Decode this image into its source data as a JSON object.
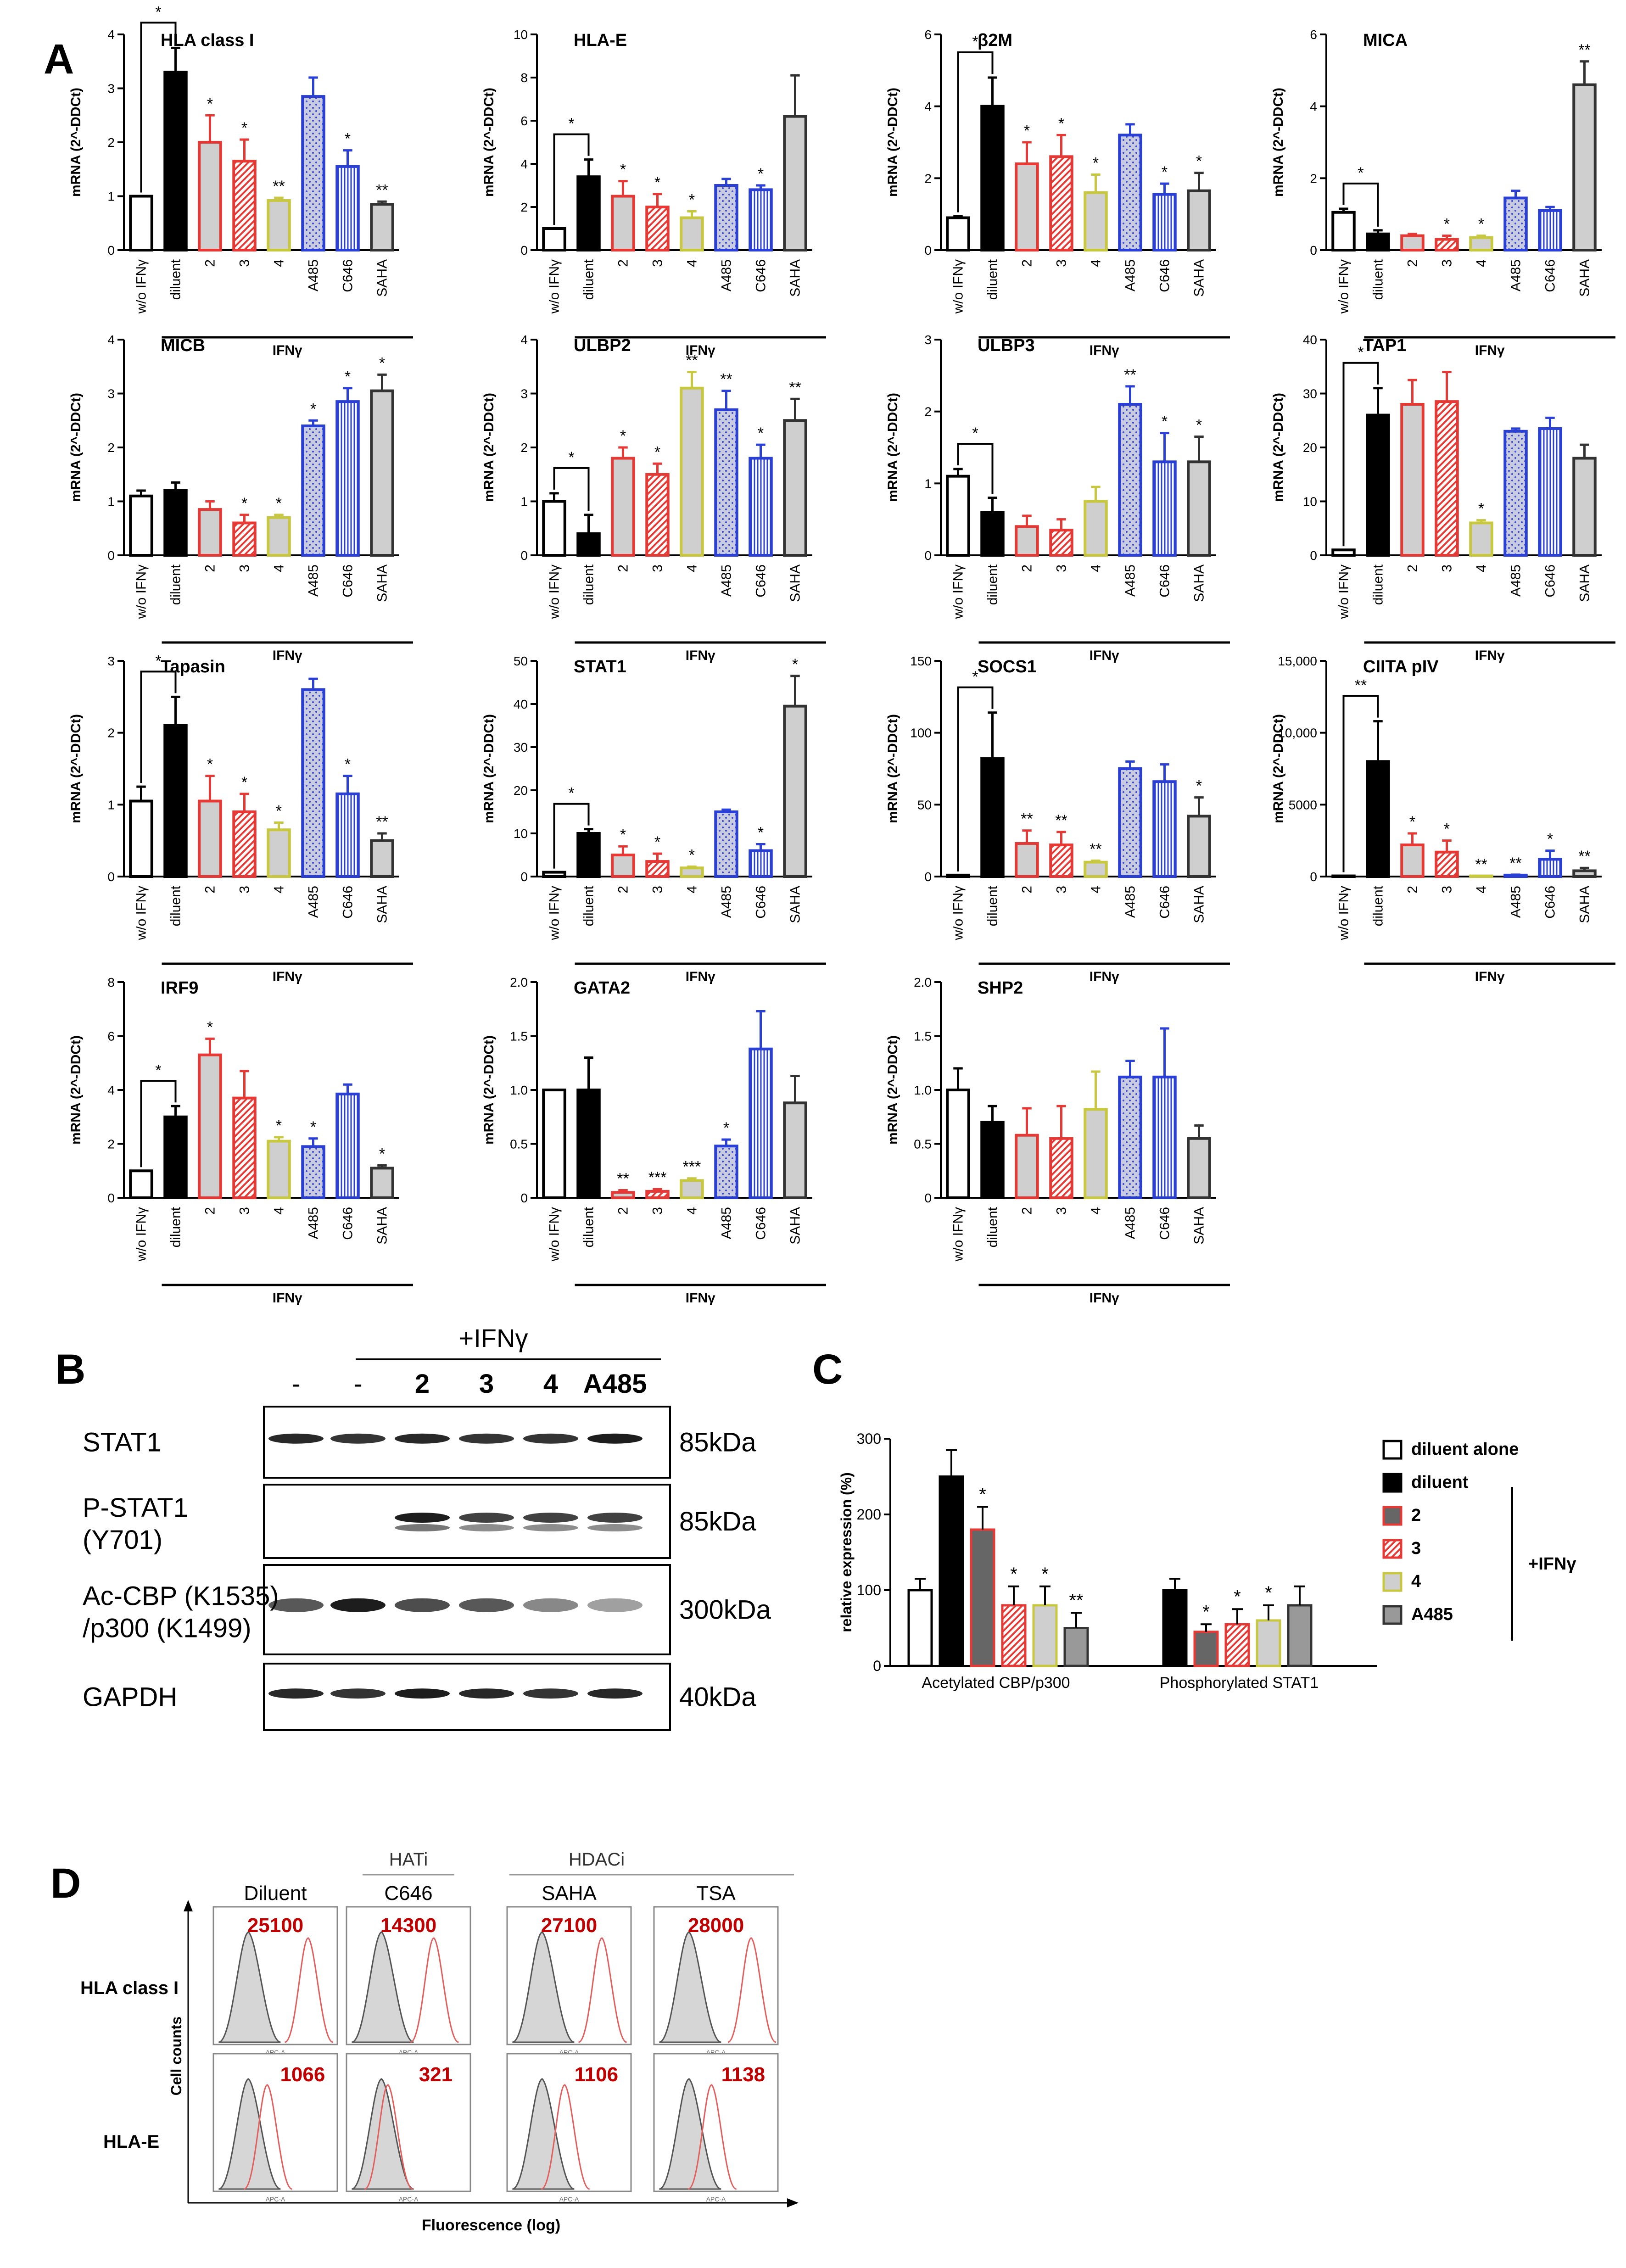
{
  "panel_labels": {
    "a": "A",
    "b": "B",
    "c": "C",
    "d": "D"
  },
  "shared": {
    "ylabel": "mRNA (2^-DDCt)",
    "categories": [
      "w/o IFNγ",
      "diluent",
      "2",
      "3",
      "4",
      "A485",
      "C646",
      "SAHA"
    ],
    "group_label": "IFNγ",
    "colors": {
      "w/o IFNγ": "#ffffff",
      "diluent": "#000000",
      "2": "#e53935",
      "3": "#e53935",
      "4": "#c8c840",
      "A485": "#2a3fd4",
      "C646": "#2a3fd4",
      "SAHA": "#444444"
    }
  },
  "chart_data": [
    {
      "type": "bar",
      "title": "HLA class I",
      "categories": [
        "w/o IFNγ",
        "diluent",
        "2",
        "3",
        "4",
        "A485",
        "C646",
        "SAHA"
      ],
      "values": [
        1.0,
        3.3,
        2.0,
        1.65,
        0.92,
        2.85,
        1.55,
        0.85
      ],
      "errors": [
        0,
        0.45,
        0.5,
        0.4,
        0.05,
        0.35,
        0.3,
        0.05
      ],
      "sig": [
        "",
        "",
        "*",
        "*",
        "**",
        "",
        "*",
        "**"
      ],
      "bracket": "*",
      "ylim": [
        0,
        4
      ],
      "yticks": [
        "0",
        "1",
        "2",
        "3",
        "4"
      ],
      "ylabel": "mRNA (2^-DDCt)",
      "xlabel": "IFNγ"
    },
    {
      "type": "bar",
      "title": "HLA-E",
      "categories": [
        "w/o IFNγ",
        "diluent",
        "2",
        "3",
        "4",
        "A485",
        "C646",
        "SAHA"
      ],
      "values": [
        1.0,
        3.4,
        2.5,
        2.0,
        1.5,
        3.0,
        2.8,
        6.2
      ],
      "errors": [
        0,
        0.8,
        0.7,
        0.6,
        0.3,
        0.3,
        0.2,
        1.9
      ],
      "sig": [
        "",
        "",
        "*",
        "*",
        "*",
        "",
        "*",
        ""
      ],
      "bracket": "*",
      "ylim": [
        0,
        10
      ],
      "yticks": [
        "0",
        "2",
        "4",
        "6",
        "8",
        "10"
      ],
      "ylabel": "mRNA (2^-DDCt)",
      "xlabel": "IFNγ"
    },
    {
      "type": "bar",
      "title": "β2M",
      "categories": [
        "w/o IFNγ",
        "diluent",
        "2",
        "3",
        "4",
        "A485",
        "C646",
        "SAHA"
      ],
      "values": [
        0.9,
        4.0,
        2.4,
        2.6,
        1.6,
        3.2,
        1.55,
        1.65
      ],
      "errors": [
        0.05,
        0.8,
        0.6,
        0.6,
        0.5,
        0.3,
        0.3,
        0.5
      ],
      "sig": [
        "",
        "",
        "*",
        "*",
        "*",
        "",
        "*",
        "*"
      ],
      "bracket": "*",
      "ylim": [
        0,
        6
      ],
      "yticks": [
        "0",
        "2",
        "4",
        "6"
      ],
      "ylabel": "mRNA (2^-DDCt)",
      "xlabel": "IFNγ"
    },
    {
      "type": "bar",
      "title": "MICA",
      "categories": [
        "w/o IFNγ",
        "diluent",
        "2",
        "3",
        "4",
        "A485",
        "C646",
        "SAHA"
      ],
      "values": [
        1.05,
        0.45,
        0.4,
        0.3,
        0.35,
        1.45,
        1.1,
        4.6
      ],
      "errors": [
        0.1,
        0.1,
        0.05,
        0.1,
        0.05,
        0.2,
        0.1,
        0.65
      ],
      "sig": [
        "",
        "",
        "",
        "*",
        "*",
        "",
        "",
        "**"
      ],
      "bracket": "*",
      "ylim": [
        0,
        6
      ],
      "yticks": [
        "0",
        "2",
        "4",
        "6"
      ],
      "ylabel": "mRNA (2^-DDCt)",
      "xlabel": "IFNγ"
    },
    {
      "type": "bar",
      "title": "MICB",
      "categories": [
        "w/o IFNγ",
        "diluent",
        "2",
        "3",
        "4",
        "A485",
        "C646",
        "SAHA"
      ],
      "values": [
        1.1,
        1.2,
        0.85,
        0.6,
        0.7,
        2.4,
        2.85,
        3.05
      ],
      "errors": [
        0.1,
        0.15,
        0.15,
        0.15,
        0.05,
        0.1,
        0.25,
        0.3
      ],
      "sig": [
        "",
        "",
        "",
        "*",
        "*",
        "*",
        "*",
        "*"
      ],
      "bracket": "",
      "ylim": [
        0,
        4
      ],
      "yticks": [
        "0",
        "1",
        "2",
        "3",
        "4"
      ],
      "ylabel": "mRNA (2^-DDCt)",
      "xlabel": "IFNγ"
    },
    {
      "type": "bar",
      "title": "ULBP2",
      "categories": [
        "w/o IFNγ",
        "diluent",
        "2",
        "3",
        "4",
        "A485",
        "C646",
        "SAHA"
      ],
      "values": [
        1.0,
        0.4,
        1.8,
        1.5,
        3.1,
        2.7,
        1.8,
        2.5
      ],
      "errors": [
        0.15,
        0.35,
        0.2,
        0.2,
        0.3,
        0.35,
        0.25,
        0.4
      ],
      "sig": [
        "",
        "",
        "*",
        "*",
        "**",
        "**",
        "*",
        "**"
      ],
      "bracket": "*",
      "ylim": [
        0,
        4
      ],
      "yticks": [
        "0",
        "1",
        "2",
        "3",
        "4"
      ],
      "ylabel": "mRNA (2^-DDCt)",
      "xlabel": "IFNγ"
    },
    {
      "type": "bar",
      "title": "ULBP3",
      "categories": [
        "w/o IFNγ",
        "diluent",
        "2",
        "3",
        "4",
        "A485",
        "C646",
        "SAHA"
      ],
      "values": [
        1.1,
        0.6,
        0.4,
        0.35,
        0.75,
        2.1,
        1.3,
        1.3
      ],
      "errors": [
        0.1,
        0.2,
        0.15,
        0.15,
        0.2,
        0.25,
        0.4,
        0.35
      ],
      "sig": [
        "",
        "",
        "",
        "",
        "",
        "**",
        "*",
        "*"
      ],
      "bracket": "*",
      "ylim": [
        0,
        3
      ],
      "yticks": [
        "0",
        "1",
        "2",
        "3"
      ],
      "ylabel": "mRNA (2^-DDCt)",
      "xlabel": "IFNγ"
    },
    {
      "type": "bar",
      "title": "TAP1",
      "categories": [
        "w/o IFNγ",
        "diluent",
        "2",
        "3",
        "4",
        "A485",
        "C646",
        "SAHA"
      ],
      "values": [
        1.0,
        26,
        28,
        28.5,
        6,
        23,
        23.5,
        18
      ],
      "errors": [
        0,
        5,
        4.5,
        5.5,
        0.5,
        0.5,
        2,
        2.5
      ],
      "sig": [
        "",
        "",
        "",
        "",
        "*",
        "",
        "",
        ""
      ],
      "bracket": "*",
      "ylim": [
        0,
        40
      ],
      "yticks": [
        "0",
        "10",
        "20",
        "30",
        "40"
      ],
      "ylabel": "mRNA (2^-DDCt)",
      "xlabel": "IFNγ"
    },
    {
      "type": "bar",
      "title": "Tapasin",
      "categories": [
        "w/o IFNγ",
        "diluent",
        "2",
        "3",
        "4",
        "A485",
        "C646",
        "SAHA"
      ],
      "values": [
        1.05,
        2.1,
        1.05,
        0.9,
        0.65,
        2.6,
        1.15,
        0.5
      ],
      "errors": [
        0.2,
        0.4,
        0.35,
        0.25,
        0.1,
        0.15,
        0.25,
        0.1
      ],
      "sig": [
        "",
        "",
        "*",
        "*",
        "*",
        "",
        "*",
        "**"
      ],
      "bracket": "*",
      "ylim": [
        0,
        3
      ],
      "yticks": [
        "0",
        "1",
        "2",
        "3"
      ],
      "ylabel": "mRNA (2^-DDCt)",
      "xlabel": "IFNγ"
    },
    {
      "type": "bar",
      "title": "STAT1",
      "categories": [
        "w/o IFNγ",
        "diluent",
        "2",
        "3",
        "4",
        "A485",
        "C646",
        "SAHA"
      ],
      "values": [
        1.0,
        10,
        5,
        3.5,
        2,
        15,
        6,
        39.5
      ],
      "errors": [
        0,
        1,
        2,
        1.8,
        0.3,
        0.5,
        1.5,
        7
      ],
      "sig": [
        "",
        "",
        "*",
        "*",
        "*",
        "",
        "*",
        "*"
      ],
      "bracket": "*",
      "ylim": [
        0,
        50
      ],
      "yticks": [
        "0",
        "10",
        "20",
        "30",
        "40",
        "50"
      ],
      "ylabel": "mRNA (2^-DDCt)",
      "xlabel": "IFNγ"
    },
    {
      "type": "bar",
      "title": "SOCS1",
      "categories": [
        "w/o IFNγ",
        "diluent",
        "2",
        "3",
        "4",
        "A485",
        "C646",
        "SAHA"
      ],
      "values": [
        1.0,
        82,
        23,
        22,
        10,
        75,
        66,
        42
      ],
      "errors": [
        0,
        32,
        9,
        9,
        1,
        5,
        12,
        13
      ],
      "sig": [
        "",
        "",
        "**",
        "**",
        "**",
        "",
        "",
        "*"
      ],
      "bracket": "*",
      "ylim": [
        0,
        150
      ],
      "yticks": [
        "0",
        "50",
        "100",
        "150"
      ],
      "ylabel": "mRNA (2^-DDCt)",
      "xlabel": "IFNγ"
    },
    {
      "type": "bar",
      "title": "CIITA pIV",
      "categories": [
        "w/o IFNγ",
        "diluent",
        "2",
        "3",
        "4",
        "A485",
        "C646",
        "SAHA"
      ],
      "values": [
        1.0,
        8000,
        2200,
        1700,
        20,
        100,
        1200,
        400
      ],
      "errors": [
        0,
        2800,
        800,
        800,
        5,
        30,
        600,
        200
      ],
      "sig": [
        "",
        "",
        "*",
        "*",
        "**",
        "**",
        "*",
        "**"
      ],
      "bracket": "**",
      "ylim": [
        0,
        15000
      ],
      "yticks": [
        "0",
        "5000",
        "10,000",
        "15,000"
      ],
      "ylabel": "mRNA (2^-DDCt)",
      "xlabel": "IFNγ"
    },
    {
      "type": "bar",
      "title": "IRF9",
      "categories": [
        "w/o IFNγ",
        "diluent",
        "2",
        "3",
        "4",
        "A485",
        "C646",
        "SAHA"
      ],
      "values": [
        1.0,
        3.0,
        5.3,
        3.7,
        2.1,
        1.9,
        3.85,
        1.1
      ],
      "errors": [
        0,
        0.4,
        0.6,
        1.0,
        0.15,
        0.3,
        0.35,
        0.1
      ],
      "sig": [
        "",
        "",
        "*",
        "",
        "*",
        "*",
        "",
        "*"
      ],
      "bracket": "*",
      "ylim": [
        0,
        8
      ],
      "yticks": [
        "0",
        "2",
        "4",
        "6",
        "8"
      ],
      "ylabel": "mRNA (2^-DDCt)",
      "xlabel": "IFNγ"
    },
    {
      "type": "bar",
      "title": "GATA2",
      "categories": [
        "w/o IFNγ",
        "diluent",
        "2",
        "3",
        "4",
        "A485",
        "C646",
        "SAHA"
      ],
      "values": [
        1.0,
        1.0,
        0.05,
        0.06,
        0.16,
        0.48,
        1.38,
        0.88
      ],
      "errors": [
        0,
        0.3,
        0.02,
        0.02,
        0.02,
        0.06,
        0.35,
        0.25
      ],
      "sig": [
        "",
        "",
        "**",
        "***",
        "***",
        "*",
        "",
        ""
      ],
      "bracket": "",
      "ylim": [
        0,
        2
      ],
      "yticks": [
        "0",
        "0.5",
        "1.0",
        "1.5",
        "2.0"
      ],
      "ylabel": "mRNA (2^-DDCt)",
      "xlabel": "IFNγ"
    },
    {
      "type": "bar",
      "title": "SHP2",
      "categories": [
        "w/o IFNγ",
        "diluent",
        "2",
        "3",
        "4",
        "A485",
        "C646",
        "SAHA"
      ],
      "values": [
        1.0,
        0.7,
        0.58,
        0.55,
        0.82,
        1.12,
        1.12,
        0.55
      ],
      "errors": [
        0.2,
        0.15,
        0.25,
        0.3,
        0.35,
        0.15,
        0.45,
        0.12
      ],
      "sig": [
        "",
        "",
        "",
        "",
        "",
        "",
        "",
        ""
      ],
      "bracket": "",
      "ylim": [
        0,
        2
      ],
      "yticks": [
        "0",
        "0.5",
        "1.0",
        "1.5",
        "2.0"
      ],
      "ylabel": "mRNA (2^-DDCt)",
      "xlabel": "IFNγ"
    },
    {
      "type": "bar",
      "title": "",
      "panel": "C",
      "ylabel": "relative expression (%)",
      "groups": [
        "Acetylated CBP/p300",
        "Phosphorylated STAT1"
      ],
      "ylim": [
        0,
        300
      ],
      "yticks": [
        "0",
        "100",
        "200",
        "300"
      ],
      "series": [
        {
          "name": "diluent alone",
          "values": [
            100,
            null
          ],
          "errors": [
            15,
            null
          ],
          "sig": [
            "",
            ""
          ]
        },
        {
          "name": "diluent",
          "values": [
            250,
            100
          ],
          "errors": [
            35,
            15
          ],
          "sig": [
            "",
            ""
          ]
        },
        {
          "name": "2",
          "values": [
            180,
            45
          ],
          "errors": [
            30,
            10
          ],
          "sig": [
            "*",
            "*"
          ]
        },
        {
          "name": "3",
          "values": [
            80,
            55
          ],
          "errors": [
            25,
            20
          ],
          "sig": [
            "*",
            "*"
          ]
        },
        {
          "name": "4",
          "values": [
            80,
            60
          ],
          "errors": [
            25,
            20
          ],
          "sig": [
            "*",
            "*"
          ]
        },
        {
          "name": "A485",
          "values": [
            50,
            80
          ],
          "errors": [
            20,
            25
          ],
          "sig": [
            "**",
            ""
          ]
        }
      ],
      "legend_group_label": "+IFNγ"
    }
  ],
  "blot": {
    "ifn_label": "+IFNγ",
    "lanes": [
      "-",
      "-",
      "2",
      "3",
      "4",
      "A485"
    ],
    "rows": [
      {
        "name": "STAT1",
        "size": "85kDa"
      },
      {
        "name": "P-STAT1\n(Y701)",
        "line1": "P-STAT1",
        "line2": "(Y701)",
        "size": "85kDa"
      },
      {
        "name": "Ac-CBP (K1535)\n/p300 (K1499)",
        "line1": "Ac-CBP (K1535)",
        "line2": "/p300 (K1499)",
        "size": "300kDa"
      },
      {
        "name": "GAPDH",
        "size": "40kDa"
      }
    ]
  },
  "flow": {
    "groups": [
      {
        "label": "HATi"
      },
      {
        "label": "HDACi"
      }
    ],
    "columns": [
      "Diluent",
      "C646",
      "SAHA",
      "TSA"
    ],
    "rows": [
      {
        "label": "HLA class I",
        "values": [
          "25100",
          "14300",
          "27100",
          "28000"
        ]
      },
      {
        "label": "HLA-E",
        "values": [
          "1066",
          "321",
          "1106",
          "1138"
        ]
      }
    ],
    "ylabel": "Cell counts",
    "xlabel": "Fluorescence (log)",
    "tick_text": "APC-A"
  }
}
